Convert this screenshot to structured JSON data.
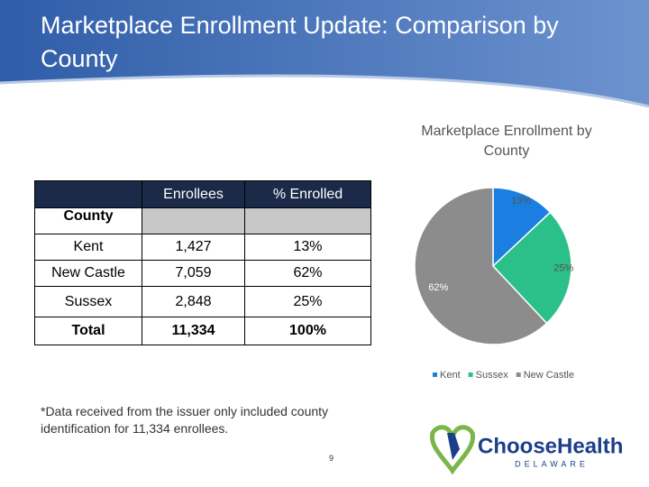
{
  "header": {
    "title": "Marketplace Enrollment Update: Comparison by County"
  },
  "table": {
    "columns": [
      "Enrollees",
      "% Enrolled"
    ],
    "row_header_label": "County",
    "rows": [
      [
        "Kent",
        "1,427",
        "13%"
      ],
      [
        "New Castle",
        "7,059",
        "62%"
      ],
      [
        "Sussex",
        "2,848",
        "25%"
      ],
      [
        "Total",
        "11,334",
        "100%"
      ]
    ]
  },
  "chart_data": {
    "type": "pie",
    "title": "Marketplace Enrollment by County",
    "categories": [
      "Kent",
      "Sussex",
      "New Castle"
    ],
    "values": [
      13,
      25,
      62
    ],
    "value_labels": [
      "13%",
      "25%",
      "62%"
    ],
    "colors": [
      "#1a7fe0",
      "#2bbf8a",
      "#8c8c8c"
    ],
    "legend": "bottom"
  },
  "footnote": "*Data received from the issuer only included county identification for 11,334 enrollees.",
  "page_number": "9",
  "logo": {
    "name": "ChooseHealth",
    "subtitle": "DELAWARE"
  }
}
